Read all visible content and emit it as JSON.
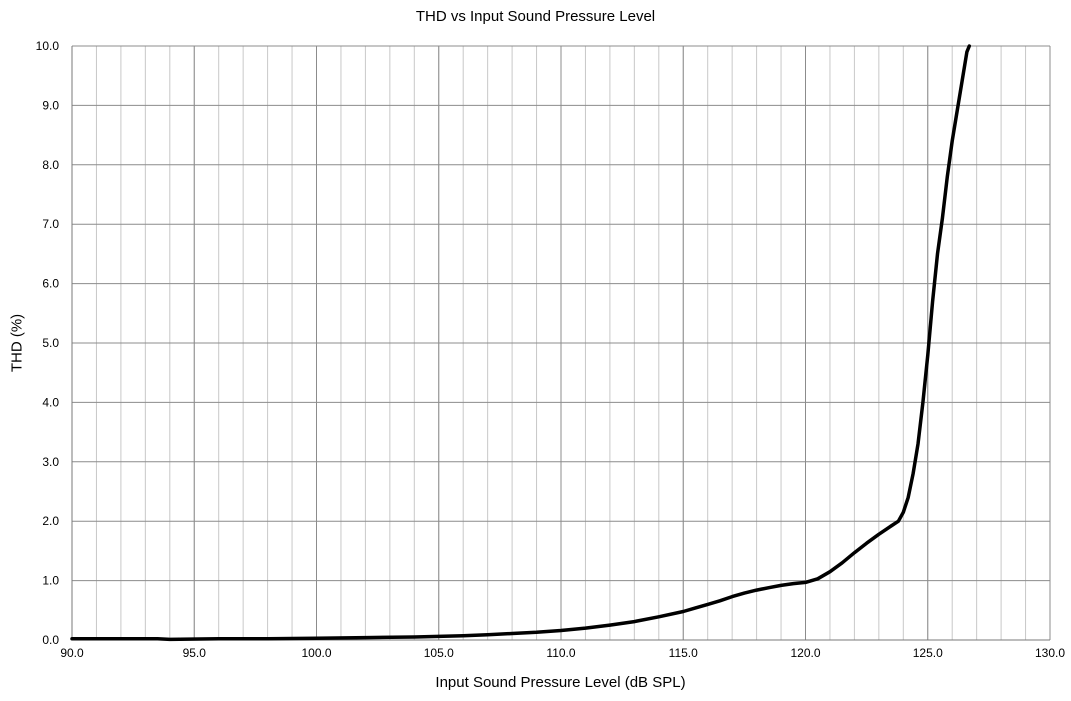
{
  "chart_data": {
    "type": "line",
    "title": "THD vs Input Sound Pressure Level",
    "xlabel": "Input Sound Pressure Level (dB SPL)",
    "ylabel": "THD (%)",
    "xlim": [
      90.0,
      130.0
    ],
    "ylim": [
      0.0,
      10.0
    ],
    "x_major_ticks": [
      "90.0",
      "95.0",
      "100.0",
      "105.0",
      "110.0",
      "115.0",
      "120.0",
      "125.0",
      "130.0"
    ],
    "y_major_ticks": [
      "0.0",
      "1.0",
      "2.0",
      "3.0",
      "4.0",
      "5.0",
      "6.0",
      "7.0",
      "8.0",
      "9.0",
      "10.0"
    ],
    "x_minor_step": 1.0,
    "grid": true,
    "legend": "none",
    "line_color": "#000000",
    "series": [
      {
        "x": [
          90.0,
          92.0,
          93.5,
          94.0,
          96.0,
          98.0,
          100.0,
          102.0,
          104.0,
          106.0,
          107.0,
          108.0,
          109.0,
          110.0,
          111.0,
          112.0,
          113.0,
          114.0,
          115.0,
          115.5,
          116.0,
          116.5,
          117.0,
          117.5,
          118.0,
          118.5,
          119.0,
          119.5,
          120.0,
          120.5,
          121.0,
          121.5,
          122.0,
          122.5,
          123.0,
          123.5,
          123.8,
          124.0,
          124.2,
          124.4,
          124.6,
          124.8,
          125.0,
          125.2,
          125.4,
          125.6,
          125.8,
          126.0,
          126.2,
          126.4,
          126.6,
          126.7
        ],
        "y": [
          0.02,
          0.02,
          0.02,
          0.01,
          0.02,
          0.02,
          0.03,
          0.04,
          0.05,
          0.07,
          0.09,
          0.11,
          0.13,
          0.16,
          0.2,
          0.25,
          0.31,
          0.39,
          0.48,
          0.54,
          0.6,
          0.66,
          0.73,
          0.79,
          0.84,
          0.88,
          0.92,
          0.95,
          0.97,
          1.03,
          1.15,
          1.3,
          1.47,
          1.63,
          1.78,
          1.92,
          2.0,
          2.15,
          2.4,
          2.8,
          3.3,
          4.0,
          4.8,
          5.7,
          6.5,
          7.1,
          7.8,
          8.4,
          8.9,
          9.4,
          9.9,
          10.0
        ]
      }
    ]
  }
}
